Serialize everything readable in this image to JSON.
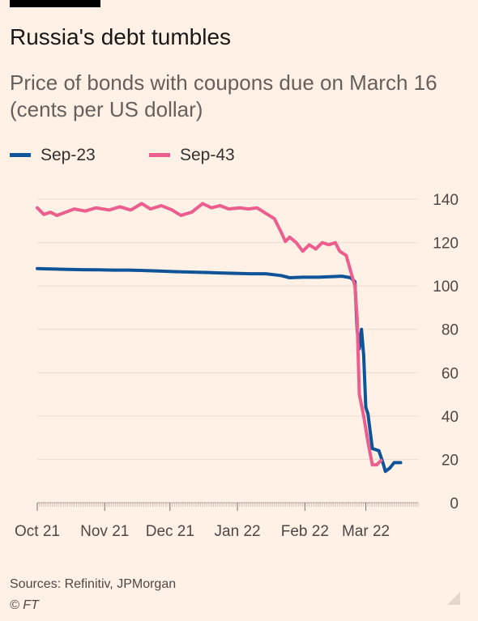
{
  "header": {
    "title": "Russia's debt tumbles",
    "subtitle": "Price of bonds with coupons due on March 16 (cents per US dollar)"
  },
  "footer": {
    "source": "Sources: Refinitiv, JPMorgan",
    "credit": "© FT"
  },
  "colors": {
    "background": "#fff1e5",
    "sep23": "#0f5499",
    "sep43": "#eb5e8d",
    "grid": "#e9ddd1",
    "axis_text": "#4d4845"
  },
  "chart_data": {
    "type": "line",
    "title": "Russia's debt tumbles",
    "subtitle": "Price of bonds with coupons due on March 16 (cents per US dollar)",
    "xlabel": "",
    "ylabel": "",
    "ylim": [
      0,
      140
    ],
    "xlim": [
      "2021-10-01",
      "2022-03-25"
    ],
    "y_ticks": [
      0,
      20,
      40,
      60,
      80,
      100,
      120,
      140
    ],
    "y_axis_side": "right",
    "x_ticks": [
      {
        "label": "Oct 21",
        "date": "2021-10-01"
      },
      {
        "label": "Nov 21",
        "date": "2021-11-01"
      },
      {
        "label": "Dec 21",
        "date": "2021-12-01"
      },
      {
        "label": "Jan 22",
        "date": "2022-01-01"
      },
      {
        "label": "Feb 22",
        "date": "2022-02-01"
      },
      {
        "label": "Mar 22",
        "date": "2022-03-01"
      }
    ],
    "grid": true,
    "legend_position": "top-left",
    "series": [
      {
        "name": "Sep-23",
        "color": "#0f5499",
        "points": [
          [
            "2021-10-01",
            108
          ],
          [
            "2021-10-08",
            107.8
          ],
          [
            "2021-10-15",
            107.6
          ],
          [
            "2021-10-22",
            107.5
          ],
          [
            "2021-10-29",
            107.4
          ],
          [
            "2021-11-05",
            107.3
          ],
          [
            "2021-11-12",
            107.3
          ],
          [
            "2021-11-19",
            107.1
          ],
          [
            "2021-11-26",
            106.9
          ],
          [
            "2021-12-03",
            106.6
          ],
          [
            "2021-12-10",
            106.4
          ],
          [
            "2021-12-17",
            106.2
          ],
          [
            "2021-12-24",
            106.0
          ],
          [
            "2021-12-31",
            105.8
          ],
          [
            "2022-01-07",
            105.6
          ],
          [
            "2022-01-14",
            105.6
          ],
          [
            "2022-01-21",
            104.8
          ],
          [
            "2022-01-25",
            103.8
          ],
          [
            "2022-01-31",
            104.0
          ],
          [
            "2022-02-07",
            104.0
          ],
          [
            "2022-02-14",
            104.3
          ],
          [
            "2022-02-18",
            104.5
          ],
          [
            "2022-02-22",
            103.8
          ],
          [
            "2022-02-24",
            102.0
          ],
          [
            "2022-02-25",
            80.0
          ],
          [
            "2022-02-26",
            71.0
          ],
          [
            "2022-02-27",
            80.0
          ],
          [
            "2022-02-28",
            68.0
          ],
          [
            "2022-03-01",
            44.0
          ],
          [
            "2022-03-02",
            41.0
          ],
          [
            "2022-03-04",
            25.0
          ],
          [
            "2022-03-07",
            24.0
          ],
          [
            "2022-03-09",
            18.0
          ],
          [
            "2022-03-10",
            14.5
          ],
          [
            "2022-03-12",
            16.0
          ],
          [
            "2022-03-14",
            18.5
          ],
          [
            "2022-03-17",
            18.5
          ]
        ]
      },
      {
        "name": "Sep-43",
        "color": "#eb5e8d",
        "points": [
          [
            "2021-10-01",
            136
          ],
          [
            "2021-10-04",
            133
          ],
          [
            "2021-10-07",
            134
          ],
          [
            "2021-10-10",
            132.5
          ],
          [
            "2021-10-14",
            134
          ],
          [
            "2021-10-18",
            135.5
          ],
          [
            "2021-10-23",
            134.5
          ],
          [
            "2021-10-28",
            136
          ],
          [
            "2021-11-03",
            135
          ],
          [
            "2021-11-08",
            136.5
          ],
          [
            "2021-11-13",
            135
          ],
          [
            "2021-11-18",
            138
          ],
          [
            "2021-11-22",
            135.5
          ],
          [
            "2021-11-27",
            137
          ],
          [
            "2021-12-02",
            135
          ],
          [
            "2021-12-06",
            132.5
          ],
          [
            "2021-12-11",
            134
          ],
          [
            "2021-12-16",
            138
          ],
          [
            "2021-12-20",
            136
          ],
          [
            "2021-12-24",
            137
          ],
          [
            "2021-12-28",
            135.5
          ],
          [
            "2022-01-02",
            136
          ],
          [
            "2022-01-06",
            135.5
          ],
          [
            "2022-01-10",
            136
          ],
          [
            "2022-01-14",
            133.5
          ],
          [
            "2022-01-18",
            131
          ],
          [
            "2022-01-21",
            125
          ],
          [
            "2022-01-23",
            120.5
          ],
          [
            "2022-01-25",
            122.5
          ],
          [
            "2022-01-28",
            120
          ],
          [
            "2022-01-31",
            116
          ],
          [
            "2022-02-03",
            119
          ],
          [
            "2022-02-06",
            117
          ],
          [
            "2022-02-09",
            120
          ],
          [
            "2022-02-12",
            119
          ],
          [
            "2022-02-15",
            120
          ],
          [
            "2022-02-17",
            116
          ],
          [
            "2022-02-20",
            114
          ],
          [
            "2022-02-22",
            107
          ],
          [
            "2022-02-24",
            100
          ],
          [
            "2022-02-25",
            85
          ],
          [
            "2022-02-26",
            50
          ],
          [
            "2022-02-28",
            40
          ],
          [
            "2022-03-02",
            28
          ],
          [
            "2022-03-04",
            17.5
          ],
          [
            "2022-03-06",
            17.5
          ],
          [
            "2022-03-08",
            19.5
          ]
        ]
      }
    ]
  }
}
